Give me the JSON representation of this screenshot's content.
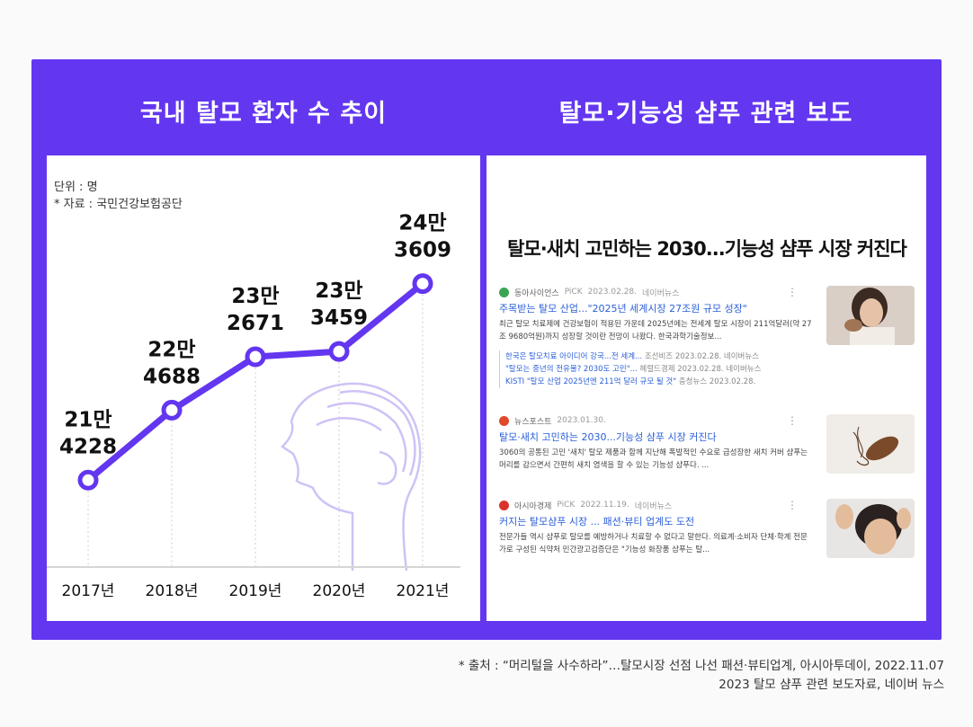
{
  "chart_panel": {
    "title": "국내 탈모 환자 수 추이",
    "unit_label": "단위 : 명",
    "source_label": "* 자료 : 국민건강보험공단"
  },
  "chart_data": {
    "type": "line",
    "x": [
      "2017년",
      "2018년",
      "2019년",
      "2020년",
      "2021년"
    ],
    "series": [
      {
        "values": [
          214228,
          224688,
          232671,
          233459,
          243609
        ]
      }
    ],
    "data_labels": [
      [
        "21만",
        "4228"
      ],
      [
        "22만",
        "4688"
      ],
      [
        "23만",
        "2671"
      ],
      [
        "23만",
        "3459"
      ],
      [
        "24만",
        "3609"
      ]
    ],
    "ylim": [
      205000,
      250000
    ],
    "grid": false,
    "line_color": "#6336f0"
  },
  "news_panel": {
    "title": "탈모·기능성 샴푸 관련 보도",
    "headline": "탈모·새치 고민하는 2030...기능성 샴푸 시장 커진다",
    "articles": [
      {
        "source": "동아사이언스",
        "pick": "PiCK",
        "date": "2023.02.28.",
        "portal": "네이버뉴스",
        "title": "주목받는 탈모 산업...\"2025년 세계시장 27조원 규모 성장\"",
        "desc": "최근 탈모 치료제에 건강보험이 적용된 가운데 2025년에는 전세계 탈모 시장이 211억달러(약 27조 9680억원)까지 성장할 것이란 전망이 나왔다. 한국과학기술정보...",
        "logo_color": "#3aa655",
        "related": [
          {
            "text": "한국은 탈모치료 아이디어 강국...전 세계...",
            "source": "조선비즈",
            "date": "2023.02.28.",
            "portal": "네이버뉴스"
          },
          {
            "text": "\"탈모는 중년의 전유물? 2030도 고민\"...",
            "source": "헤럴드경제",
            "date": "2023.02.28.",
            "portal": "네이버뉴스"
          },
          {
            "text": "KISTI \"탈모 산업 2025년엔 211억 달러 규모 될 것\"",
            "source": "충청뉴스",
            "date": "2023.02.28.",
            "portal": ""
          }
        ]
      },
      {
        "source": "뉴스포스트",
        "pick": "",
        "date": "2023.01.30.",
        "portal": "",
        "title": "탈모·새치 고민하는 2030...기능성 샴푸 시장 커진다",
        "desc": "3060의 공통된 고민 '새치' 탈모 제품과 함께 지난해 폭발적인 수요로 급성장한 새치 커버 샴푸는 머리를 감으면서 간편히 새치 염색을 할 수 있는 기능성 샴푸다. ...",
        "logo_color": "#e0492b",
        "related": []
      },
      {
        "source": "아시아경제",
        "pick": "PiCK",
        "date": "2022.11.19.",
        "portal": "네이버뉴스",
        "title": "커지는 탈모샴푸 시장 ... 패션·뷰티 업계도 도전",
        "desc": "전문가들 역시 샴푸로 탈모를 예방하거나 치료할 수 없다고 말한다. 의료계·소비자 단체·학계 전문가로 구성된 식약처 민간광고검증단은 \"기능성 화장품 샴푸는 탈...",
        "logo_color": "#d9342b",
        "related": []
      }
    ]
  },
  "footnote": {
    "line1": "* 출처 : “머리털을 사수하라”…탈모시장 선점 나선 패션·뷰티업계, 아시아투데이, 2022.11.07",
    "line2": "2023 탈모 샴푸 관련 보도자료, 네이버 뉴스"
  }
}
